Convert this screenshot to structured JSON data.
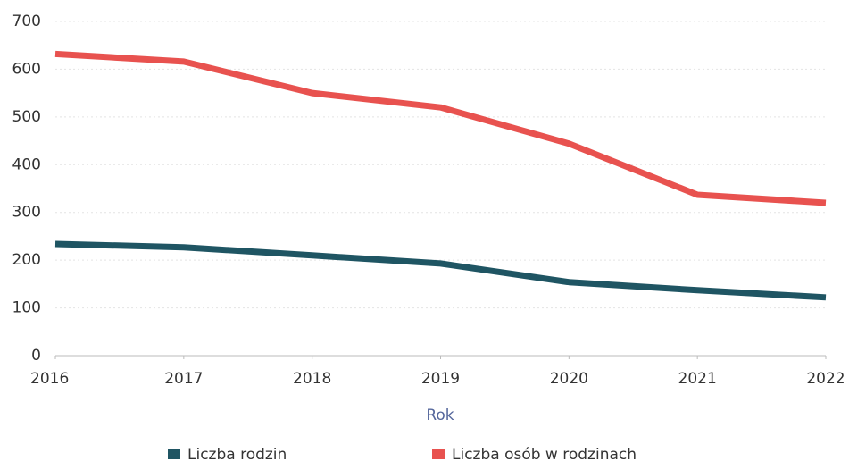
{
  "chart_data": {
    "type": "line",
    "x": [
      2016,
      2017,
      2018,
      2019,
      2020,
      2021,
      2022
    ],
    "xlim": [
      2016,
      2022
    ],
    "xticks": [
      2016,
      2017,
      2018,
      2019,
      2020,
      2021,
      2022
    ],
    "ylim": [
      0,
      700
    ],
    "yticks": [
      0,
      100,
      200,
      300,
      400,
      500,
      600,
      700
    ],
    "xlabel": "Rok",
    "grid": true,
    "legend": "bottom",
    "series": [
      {
        "name": "Liczba rodzin",
        "color": "#1f5563",
        "values": [
          234,
          227,
          210,
          193,
          154,
          137,
          122
        ]
      },
      {
        "name": "Liczba osób w rodzinach",
        "color": "#e8524f",
        "values": [
          632,
          616,
          550,
          520,
          444,
          337,
          320
        ]
      }
    ]
  }
}
